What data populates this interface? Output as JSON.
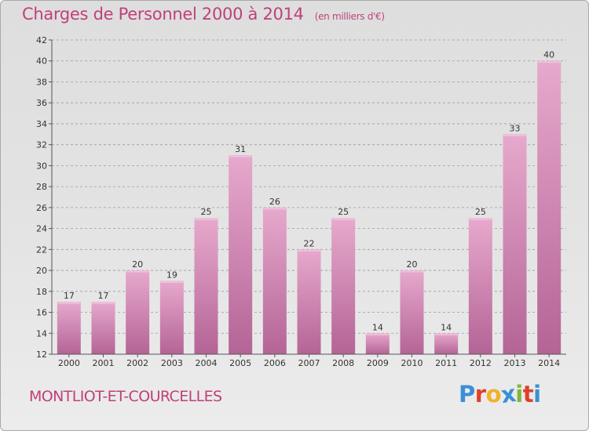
{
  "title": "Charges de Personnel 2000 à 2014",
  "subtitle": "(en milliers d'€)",
  "town": "MONTLIOT-ET-COURCELLES",
  "logo": {
    "letters": [
      "P",
      "r",
      "o",
      "x",
      "i",
      "t",
      "i"
    ],
    "colors": [
      "#3b8fd6",
      "#e0402a",
      "#f0b22a",
      "#3b8fd6",
      "#7cb83a",
      "#e0402a",
      "#3b8fd6"
    ]
  },
  "colors": {
    "title": "#c0407a",
    "bar_light": "#e7a9cd",
    "bar_dark": "#b46496",
    "grid": "#9c9c9c"
  },
  "chart_data": {
    "type": "bar",
    "categories": [
      "2000",
      "2001",
      "2002",
      "2003",
      "2004",
      "2005",
      "2006",
      "2007",
      "2008",
      "2009",
      "2010",
      "2011",
      "2012",
      "2013",
      "2014"
    ],
    "values": [
      17,
      17,
      20,
      19,
      25,
      31,
      26,
      22,
      25,
      14,
      20,
      14,
      25,
      33,
      40
    ],
    "title": "Charges de Personnel 2000 à 2014",
    "subtitle": "(en milliers d'€)",
    "ylim": [
      12,
      42
    ],
    "yticks": [
      12,
      14,
      16,
      18,
      20,
      22,
      24,
      26,
      28,
      30,
      32,
      34,
      36,
      38,
      40,
      42
    ],
    "grid": true
  }
}
